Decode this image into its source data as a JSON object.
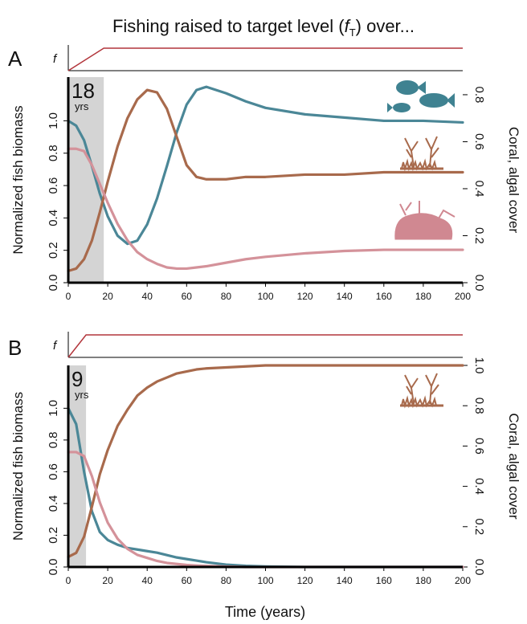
{
  "figure": {
    "title_before": "Fishing raised to target level (",
    "title_symbol": "f",
    "title_subscript": "T",
    "title_after": ") over...",
    "x_label": "Time (years)"
  },
  "chart_data": [
    {
      "type": "line",
      "panel": "A",
      "f_label": "f",
      "ramp_years": 18,
      "ramp_unit": "yrs",
      "y_label": "Normalized fish biomass",
      "y2_label": "Coral, algal cover",
      "x": [
        0,
        4,
        8,
        12,
        16,
        20,
        25,
        30,
        35,
        40,
        45,
        50,
        55,
        60,
        65,
        70,
        80,
        90,
        100,
        120,
        140,
        160,
        180,
        200
      ],
      "xlim": [
        0,
        200
      ],
      "xticks": [
        0,
        20,
        40,
        60,
        80,
        100,
        120,
        140,
        160,
        180,
        200
      ],
      "ylim": [
        0,
        1.27
      ],
      "yticks": [
        {
          "value": 0,
          "label": "0.0"
        },
        0.2,
        0.4,
        0.6,
        0.8,
        {
          "value": 1,
          "label": "1.0"
        }
      ],
      "y2lim": [
        0,
        0.875
      ],
      "y2ticks": [
        {
          "value": 0,
          "label": "0.0"
        },
        0.2,
        0.4,
        0.6,
        0.8
      ],
      "shade_color": "#d4d4d4",
      "ramp_color": "#b2353b",
      "series": [
        {
          "color": "#4b8797",
          "values": [
            1.0,
            0.97,
            0.88,
            0.72,
            0.55,
            0.41,
            0.29,
            0.24,
            0.26,
            0.36,
            0.52,
            0.72,
            0.93,
            1.1,
            1.19,
            1.21,
            1.17,
            1.12,
            1.08,
            1.04,
            1.02,
            1.0,
            1.0,
            0.99
          ]
        },
        {
          "color": "#a86a4c",
          "axis": "y2",
          "values": [
            0.05,
            0.06,
            0.1,
            0.18,
            0.3,
            0.43,
            0.58,
            0.7,
            0.78,
            0.82,
            0.81,
            0.74,
            0.62,
            0.5,
            0.45,
            0.44,
            0.44,
            0.45,
            0.45,
            0.46,
            0.46,
            0.47,
            0.47,
            0.47
          ]
        },
        {
          "color": "#d4929a",
          "axis": "y2",
          "values": [
            0.57,
            0.57,
            0.56,
            0.5,
            0.42,
            0.34,
            0.25,
            0.18,
            0.13,
            0.1,
            0.08,
            0.065,
            0.06,
            0.06,
            0.065,
            0.07,
            0.085,
            0.1,
            0.11,
            0.125,
            0.135,
            0.14,
            0.14,
            0.14
          ]
        }
      ]
    },
    {
      "type": "line",
      "panel": "B",
      "f_label": "f",
      "ramp_years": 9,
      "ramp_unit": "yrs",
      "y_label": "Normalized fish biomass",
      "y2_label": "Coral, algal cover",
      "x": [
        0,
        4,
        8,
        12,
        16,
        20,
        25,
        30,
        35,
        40,
        45,
        50,
        55,
        60,
        65,
        70,
        80,
        90,
        100,
        120,
        140,
        160,
        180,
        200
      ],
      "xlim": [
        0,
        200
      ],
      "xticks": [
        0,
        20,
        40,
        60,
        80,
        100,
        120,
        140,
        160,
        180,
        200
      ],
      "ylim": [
        0,
        1.27
      ],
      "yticks": [
        {
          "value": 0,
          "label": "0.0"
        },
        0.2,
        0.4,
        0.6,
        0.8,
        {
          "value": 1,
          "label": "1.0"
        }
      ],
      "y2lim": [
        0,
        1.0
      ],
      "y2ticks": [
        {
          "value": 0,
          "label": "0.0"
        },
        0.2,
        0.4,
        0.6,
        0.8,
        {
          "value": 1,
          "label": "1.0"
        }
      ],
      "shade_color": "#d4d4d4",
      "ramp_color": "#b2353b",
      "series": [
        {
          "color": "#4b8797",
          "values": [
            1.0,
            0.9,
            0.6,
            0.35,
            0.22,
            0.17,
            0.14,
            0.12,
            0.11,
            0.1,
            0.09,
            0.075,
            0.06,
            0.05,
            0.04,
            0.03,
            0.015,
            0.007,
            0.003,
            0,
            0,
            0,
            0,
            0
          ]
        },
        {
          "color": "#a86a4c",
          "axis": "y2",
          "values": [
            0.05,
            0.07,
            0.15,
            0.3,
            0.46,
            0.58,
            0.7,
            0.78,
            0.85,
            0.89,
            0.92,
            0.94,
            0.96,
            0.97,
            0.98,
            0.985,
            0.99,
            0.995,
            1.0,
            1.0,
            1.0,
            1.0,
            1.0,
            1.0
          ]
        },
        {
          "color": "#d4929a",
          "axis": "y2",
          "values": [
            0.57,
            0.57,
            0.55,
            0.45,
            0.32,
            0.22,
            0.14,
            0.09,
            0.06,
            0.045,
            0.03,
            0.02,
            0.015,
            0.01,
            0.007,
            0.005,
            0.002,
            0,
            0,
            0,
            0,
            0,
            0,
            0
          ]
        }
      ]
    }
  ]
}
